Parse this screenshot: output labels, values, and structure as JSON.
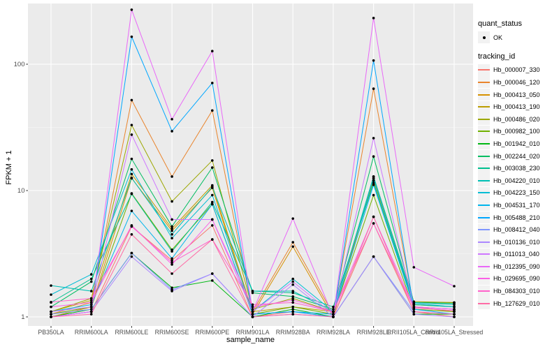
{
  "figure": {
    "background": "#FFFFFF",
    "panel_background": "#EBEBEB",
    "grid_color": "#FFFFFF",
    "tick_color": "#333333",
    "tick_label_color": "#4D4D4D",
    "point_color": "#000000"
  },
  "legend": {
    "quant_status_title": "quant_status",
    "quant_status_items": [
      {
        "label": "OK",
        "shape": "point-icon"
      }
    ],
    "tracking_id_title": "tracking_id"
  },
  "chart_data": {
    "type": "line",
    "title": "",
    "xlabel": "sample_name",
    "ylabel": "FPKM + 1",
    "y_scale": "log10",
    "y_ticks": [
      1,
      10,
      100
    ],
    "ylim": [
      0.85,
      300
    ],
    "grid": true,
    "legend_position": "right",
    "point_marker": "filled-circle",
    "categories": [
      "PB350LA",
      "RRIM600LA",
      "RRIM600LE",
      "RRIM600SE",
      "RRIM600PE",
      "RRIM901LA",
      "RRIM928BA",
      "RRIM928LA",
      "RRIM928LE",
      "RRII105LA_Control",
      "RRII105LA_Stressed"
    ],
    "series": [
      {
        "name": "Hb_000007_330",
        "color": "#F8766D",
        "values": [
          1.0,
          1.1,
          5.2,
          2.8,
          5.3,
          1.0,
          1.1,
          1.0,
          5.5,
          1.1,
          1.0
        ]
      },
      {
        "name": "Hb_000046_120",
        "color": "#E9842C",
        "values": [
          1.05,
          1.3,
          52,
          12.9,
          43,
          1.1,
          3.9,
          1.05,
          64,
          1.2,
          1.1
        ]
      },
      {
        "name": "Hb_000413_050",
        "color": "#D69100",
        "values": [
          1.0,
          1.2,
          12.5,
          4.8,
          10.5,
          1.05,
          3.6,
          1.0,
          12.5,
          1.25,
          1.2
        ]
      },
      {
        "name": "Hb_000413_190",
        "color": "#BC9D00",
        "values": [
          1.1,
          1.35,
          13.5,
          5.0,
          11,
          1.1,
          1.2,
          1.1,
          12,
          1.3,
          1.3
        ]
      },
      {
        "name": "Hb_000486_020",
        "color": "#9CA700",
        "values": [
          1.1,
          1.4,
          33,
          8.2,
          17.3,
          1.15,
          1.4,
          1.1,
          12.9,
          1.32,
          1.3
        ]
      },
      {
        "name": "Hb_000982_100",
        "color": "#6FB000",
        "values": [
          1.05,
          1.2,
          9.5,
          3.4,
          7.8,
          1.05,
          1.2,
          1.05,
          9.2,
          1.15,
          1.1
        ]
      },
      {
        "name": "Hb_001942_010",
        "color": "#00B813",
        "values": [
          1.0,
          1.15,
          3.2,
          1.7,
          1.94,
          1.0,
          1.15,
          1.0,
          3.0,
          1.05,
          1.05
        ]
      },
      {
        "name": "Hb_002244_020",
        "color": "#00BD61",
        "values": [
          1.2,
          1.9,
          17.8,
          5.2,
          15.2,
          1.55,
          1.45,
          1.15,
          18.6,
          1.3,
          1.28
        ]
      },
      {
        "name": "Hb_003038_230",
        "color": "#00C08E",
        "values": [
          1.3,
          2.0,
          9.4,
          3.3,
          8.1,
          1.6,
          1.55,
          1.2,
          11.5,
          1.25,
          1.2
        ]
      },
      {
        "name": "Hb_004220_010",
        "color": "#00C0B4",
        "values": [
          1.77,
          1.6,
          12.6,
          4.5,
          10.7,
          1.6,
          1.6,
          1.1,
          12.9,
          1.3,
          1.25
        ]
      },
      {
        "name": "Hb_004223_150",
        "color": "#00BDD4",
        "values": [
          1.5,
          2.17,
          14.7,
          4.2,
          9.2,
          1.1,
          2.0,
          1.1,
          12.5,
          1.28,
          1.2
        ]
      },
      {
        "name": "Hb_004531_170",
        "color": "#00B5EC",
        "values": [
          1.1,
          1.25,
          6.9,
          2.9,
          7.8,
          1.05,
          1.1,
          1.05,
          11.1,
          1.2,
          1.15
        ]
      },
      {
        "name": "Hb_005488_210",
        "color": "#00A7FF",
        "values": [
          1.0,
          1.1,
          165,
          29.5,
          71,
          1.05,
          1.1,
          1.0,
          107,
          1.15,
          1.05
        ]
      },
      {
        "name": "Hb_008412_040",
        "color": "#7F96FF",
        "values": [
          1.05,
          1.15,
          3.2,
          1.64,
          2.2,
          1.0,
          1.05,
          1.0,
          3.0,
          1.1,
          1.05
        ]
      },
      {
        "name": "Hb_010136_010",
        "color": "#AC88FF",
        "values": [
          1.0,
          1.1,
          3.0,
          1.6,
          2.2,
          1.0,
          1.8,
          1.0,
          3.0,
          1.05,
          1.0
        ]
      },
      {
        "name": "Hb_011013_040",
        "color": "#CF78FF",
        "values": [
          1.1,
          1.2,
          27.7,
          5.9,
          5.9,
          1.1,
          1.9,
          1.05,
          26,
          1.2,
          1.15
        ]
      },
      {
        "name": "Hb_012395_090",
        "color": "#E968F8",
        "values": [
          1.0,
          1.1,
          270,
          36.7,
          127,
          1.1,
          6.0,
          1.0,
          232,
          2.47,
          1.75
        ]
      },
      {
        "name": "Hb_029695_090",
        "color": "#FA5FE6",
        "values": [
          1.2,
          1.3,
          5.3,
          2.6,
          5.9,
          1.2,
          1.36,
          1.1,
          6.2,
          1.2,
          1.15
        ]
      },
      {
        "name": "Hb_084303_010",
        "color": "#FF62CB",
        "values": [
          1.31,
          1.4,
          5.2,
          2.7,
          4.1,
          1.25,
          1.3,
          1.1,
          5.5,
          1.18,
          1.12
        ]
      },
      {
        "name": "Hb_127629_010",
        "color": "#FF6BA6",
        "values": [
          1.0,
          1.05,
          4.5,
          2.2,
          4.1,
          1.0,
          1.05,
          1.0,
          6.2,
          1.1,
          1.05
        ]
      }
    ]
  }
}
